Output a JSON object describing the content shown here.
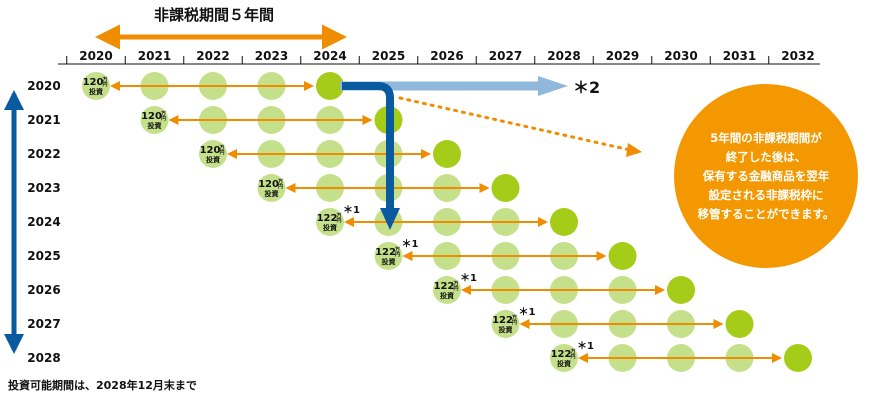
{
  "header": {
    "title": "非課税期間５年間"
  },
  "years_top": [
    "2020",
    "2021",
    "2022",
    "2023",
    "2024",
    "2025",
    "2026",
    "2027",
    "2028",
    "2029",
    "2030",
    "2031",
    "2032"
  ],
  "years_left": [
    "2020",
    "2021",
    "2022",
    "2023",
    "2024",
    "2025",
    "2026",
    "2027",
    "2028"
  ],
  "rows": [
    {
      "amount": "120",
      "unit": "万円",
      "label": "投資",
      "note": ""
    },
    {
      "amount": "120",
      "unit": "万円",
      "label": "投資",
      "note": ""
    },
    {
      "amount": "120",
      "unit": "万円",
      "label": "投資",
      "note": ""
    },
    {
      "amount": "120",
      "unit": "万円",
      "label": "投資",
      "note": ""
    },
    {
      "amount": "122",
      "unit": "万円",
      "label": "投資",
      "note": "＊1"
    },
    {
      "amount": "122",
      "unit": "万円",
      "label": "投資",
      "note": "＊1"
    },
    {
      "amount": "122",
      "unit": "万円",
      "label": "投資",
      "note": "＊1"
    },
    {
      "amount": "122",
      "unit": "万円",
      "label": "投資",
      "note": "＊1"
    },
    {
      "amount": "122",
      "unit": "万円",
      "label": "投資",
      "note": "＊1"
    }
  ],
  "footnote_mark_2": "＊2",
  "callout": {
    "lines": [
      "5年間の非課税期間が",
      "終了した後は、",
      "保有する金融商品を翌年",
      "設定される非課税枠に",
      "移管することができます。"
    ]
  },
  "footer": {
    "text": "投資可能期間は、2028年12月末まで"
  },
  "colors": {
    "light_green": "#c5e08a",
    "dark_green": "#a6cc1a",
    "orange": "#f08c00",
    "dark_blue": "#0a5aa0",
    "light_blue": "#8fb8dc",
    "callout_orange": "#f39800"
  }
}
